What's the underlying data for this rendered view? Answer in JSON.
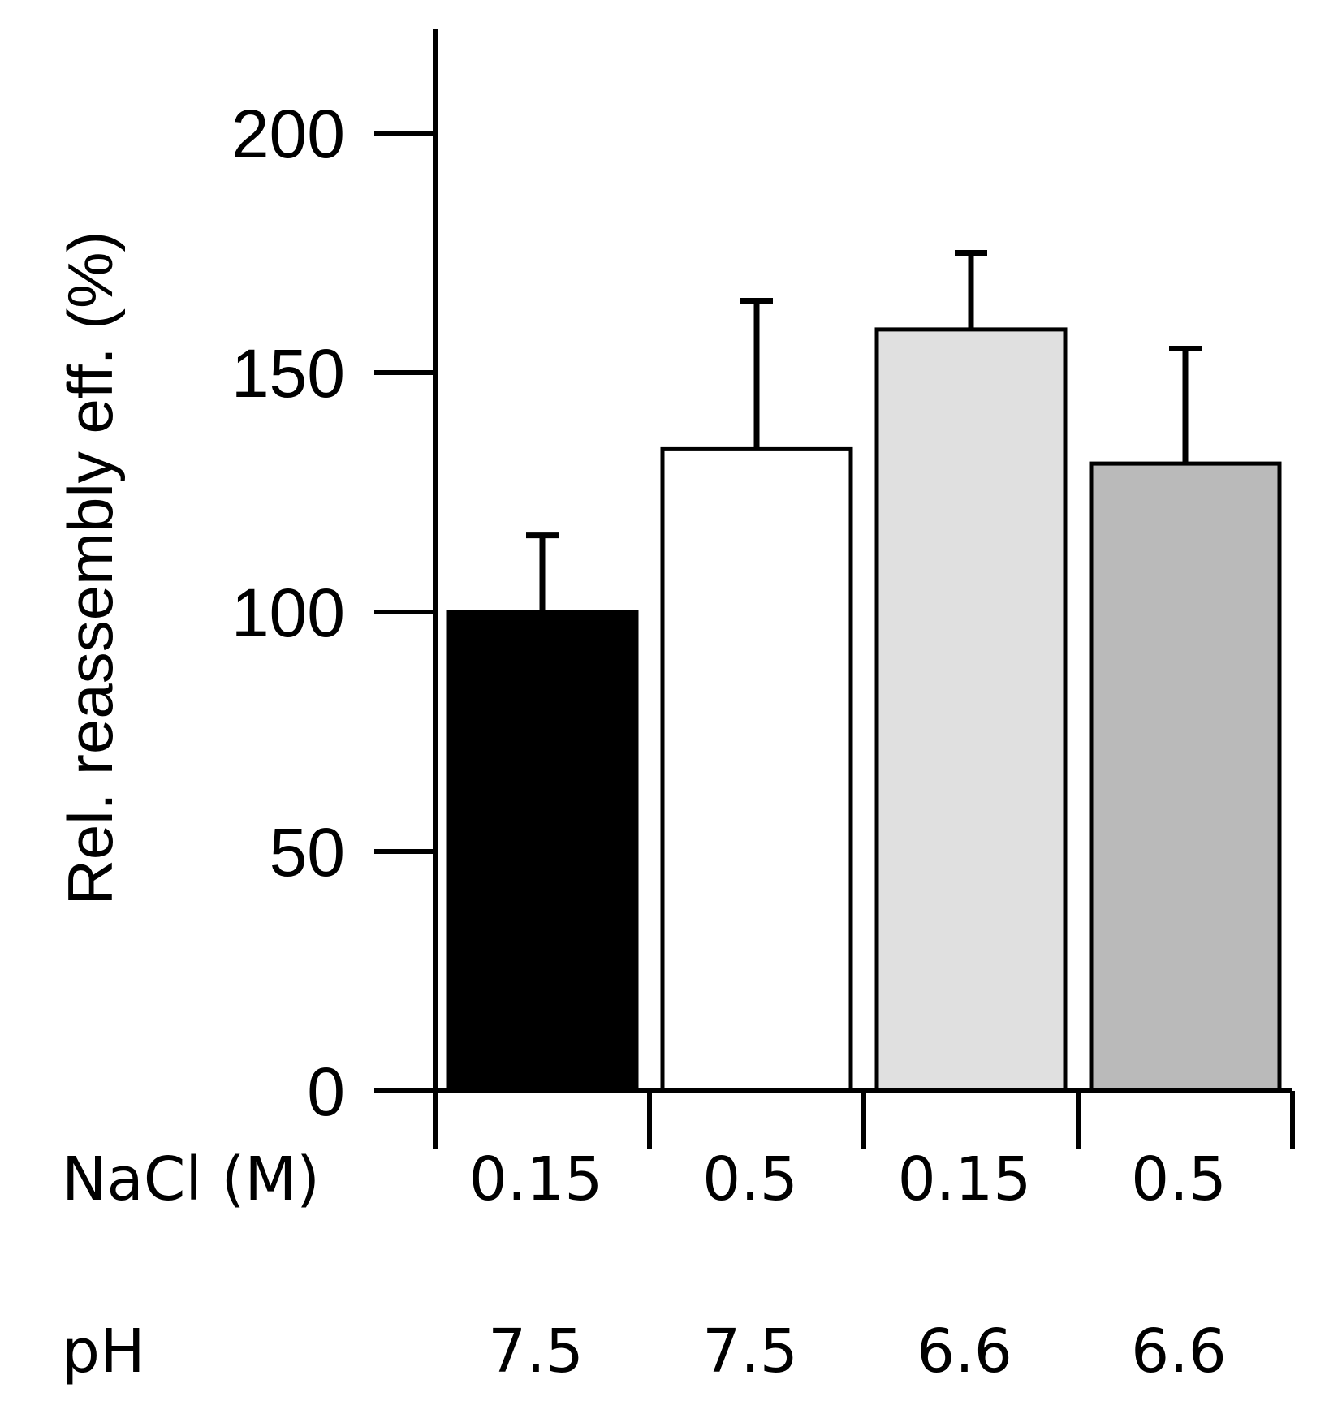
{
  "chart_data": {
    "type": "bar",
    "title": "",
    "xlabel": "",
    "ylabel": "Rel. reassembly eff. (%)",
    "ylim": [
      0,
      220
    ],
    "yticks": [
      0,
      50,
      100,
      150,
      200
    ],
    "ytick_labels": [
      "0",
      "50",
      "100",
      "150",
      "200"
    ],
    "categories": [
      "0.15 / 7.5",
      "0.5 / 7.5",
      "0.15 / 6.6",
      "0.5 / 6.6"
    ],
    "rows": [
      {
        "label": "NaCl (M)",
        "values": [
          "0.15",
          "0.5",
          "0.15",
          "0.5"
        ]
      },
      {
        "label": "pH",
        "values": [
          "7.5",
          "7.5",
          "6.6",
          "6.6"
        ]
      }
    ],
    "values": [
      100,
      134,
      159,
      131
    ],
    "errors": [
      16,
      31,
      16,
      24
    ],
    "colors": [
      "#000000",
      "#ffffff",
      "#e0e0e0",
      "#bababa"
    ],
    "grid": false
  }
}
